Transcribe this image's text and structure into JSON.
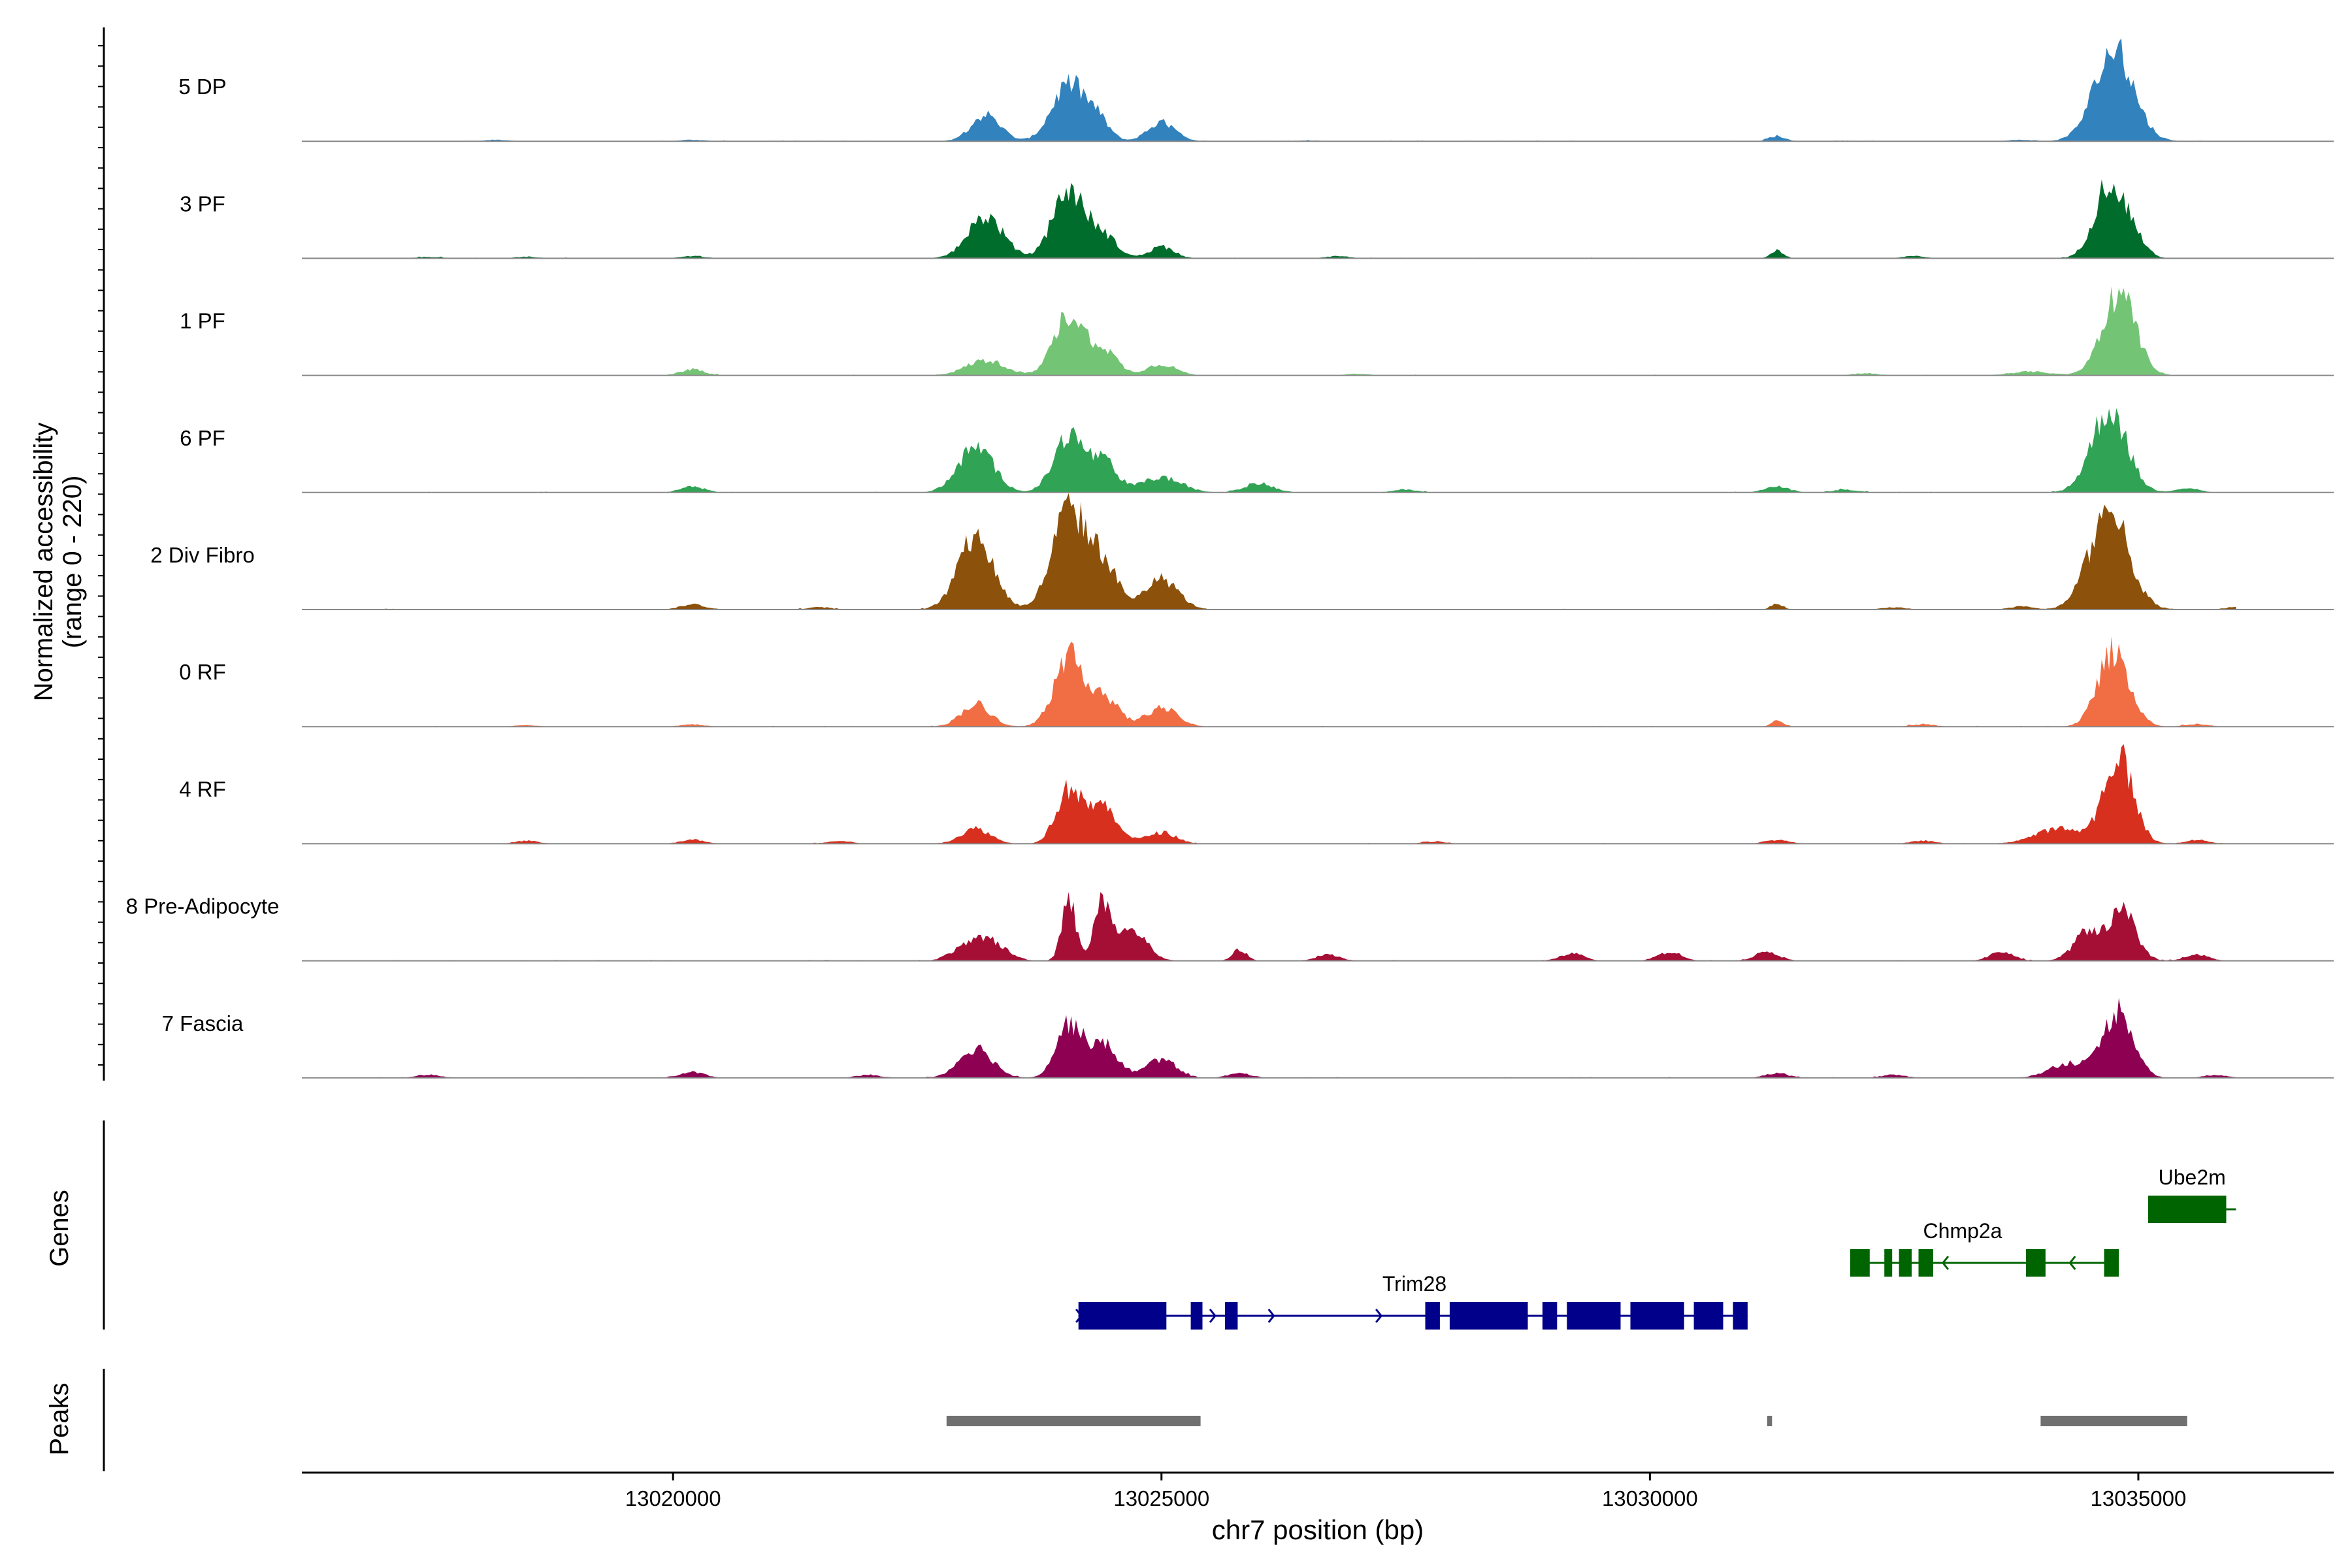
{
  "chart_data": {
    "type": "area",
    "title": "",
    "genome": {
      "chromosome": "chr7",
      "xlim": [
        13016200,
        13037000
      ]
    },
    "xaxis": {
      "label": "chr7 position (bp)",
      "ticks": [
        13020000,
        13025000,
        13030000,
        13035000
      ]
    },
    "yaxis": {
      "label_line1": "Normalized accessibility",
      "label_line2": "(range 0 - 220)",
      "ylim": [
        0,
        220
      ]
    },
    "genes_label": "Genes",
    "peaks_label": "Peaks",
    "tracks": [
      {
        "name": "5 DP",
        "color": "#3182BD",
        "peaks": [
          [
            13023200,
            35,
            150
          ],
          [
            13024050,
            75,
            170
          ],
          [
            13024350,
            25,
            120
          ],
          [
            13025000,
            25,
            140
          ],
          [
            13031300,
            7,
            80
          ],
          [
            13034750,
            120,
            200
          ]
        ],
        "noise": [
          [
            13018200,
            2
          ],
          [
            13020200,
            2
          ],
          [
            13026500,
            1
          ],
          [
            13033800,
            2
          ]
        ]
      },
      {
        "name": "3 PF",
        "color": "#006D2C",
        "peaks": [
          [
            13023200,
            55,
            180
          ],
          [
            13024050,
            90,
            160
          ],
          [
            13024400,
            30,
            140
          ],
          [
            13025000,
            15,
            130
          ],
          [
            13031300,
            10,
            60
          ],
          [
            13034700,
            100,
            150
          ],
          [
            13034950,
            25,
            120
          ]
        ],
        "noise": [
          [
            13017500,
            2
          ],
          [
            13018500,
            2
          ],
          [
            13020200,
            3
          ],
          [
            13026800,
            3
          ],
          [
            13032700,
            3
          ]
        ]
      },
      {
        "name": "1 PF",
        "color": "#74C476",
        "peaks": [
          [
            13023200,
            20,
            200
          ],
          [
            13024050,
            80,
            150
          ],
          [
            13024400,
            35,
            140
          ],
          [
            13025000,
            15,
            150
          ],
          [
            13033900,
            5,
            200
          ],
          [
            13034800,
            110,
            170
          ]
        ],
        "noise": [
          [
            13020200,
            8
          ],
          [
            13027000,
            2
          ],
          [
            13032200,
            3
          ]
        ]
      },
      {
        "name": "6 PF",
        "color": "#31A354",
        "peaks": [
          [
            13023100,
            60,
            180
          ],
          [
            13024050,
            75,
            150
          ],
          [
            13024400,
            40,
            140
          ],
          [
            13025000,
            20,
            200
          ],
          [
            13026000,
            12,
            150
          ],
          [
            13034700,
            110,
            180
          ]
        ],
        "noise": [
          [
            13020200,
            8
          ],
          [
            13027500,
            4
          ],
          [
            13031300,
            8
          ],
          [
            13032000,
            4
          ],
          [
            13035500,
            6
          ]
        ]
      },
      {
        "name": "2 Div Fibro",
        "color": "#8C510A",
        "peaks": [
          [
            13023100,
            95,
            180
          ],
          [
            13024050,
            130,
            170
          ],
          [
            13024400,
            60,
            150
          ],
          [
            13025000,
            40,
            170
          ],
          [
            13031300,
            8,
            60
          ],
          [
            13034700,
            130,
            200
          ]
        ],
        "noise": [
          [
            13020200,
            7
          ],
          [
            13021500,
            3
          ],
          [
            13032500,
            3
          ],
          [
            13033800,
            4
          ],
          [
            13036000,
            3
          ]
        ]
      },
      {
        "name": "0 RF",
        "color": "#F16D43",
        "peaks": [
          [
            13023100,
            30,
            150
          ],
          [
            13024050,
            90,
            150
          ],
          [
            13024400,
            40,
            150
          ],
          [
            13025000,
            25,
            160
          ],
          [
            13031300,
            8,
            60
          ],
          [
            13034750,
            100,
            160
          ]
        ],
        "noise": [
          [
            13018500,
            2
          ],
          [
            13020200,
            3
          ],
          [
            13032800,
            3
          ],
          [
            13035600,
            3
          ]
        ]
      },
      {
        "name": "4 RF",
        "color": "#D7301F",
        "peaks": [
          [
            13023100,
            20,
            150
          ],
          [
            13024050,
            70,
            130
          ],
          [
            13024400,
            50,
            150
          ],
          [
            13025000,
            15,
            150
          ],
          [
            13034200,
            20,
            250
          ],
          [
            13034800,
            115,
            150
          ]
        ],
        "noise": [
          [
            13018500,
            4
          ],
          [
            13020200,
            5
          ],
          [
            13021700,
            4
          ],
          [
            13027800,
            3
          ],
          [
            13031300,
            5
          ],
          [
            13032800,
            4
          ],
          [
            13035600,
            5
          ]
        ]
      },
      {
        "name": "8 Pre-Adipocyte",
        "color": "#A50F35",
        "peaks": [
          [
            13023200,
            30,
            180
          ],
          [
            13024050,
            85,
            70
          ],
          [
            13024400,
            75,
            90
          ],
          [
            13024700,
            40,
            150
          ],
          [
            13025800,
            15,
            70
          ],
          [
            13031200,
            12,
            120
          ],
          [
            13034500,
            40,
            150
          ],
          [
            13034850,
            65,
            130
          ]
        ],
        "noise": [
          [
            13022900,
            8
          ],
          [
            13026700,
            8
          ],
          [
            13029200,
            10
          ],
          [
            13030200,
            12
          ],
          [
            13033600,
            12
          ],
          [
            13035600,
            8
          ]
        ]
      },
      {
        "name": "7 Fascia",
        "color": "#8E0152",
        "peaks": [
          [
            13023100,
            40,
            170
          ],
          [
            13024050,
            70,
            130
          ],
          [
            13024400,
            45,
            150
          ],
          [
            13025000,
            25,
            150
          ],
          [
            13034300,
            20,
            200
          ],
          [
            13034800,
            90,
            150
          ]
        ],
        "noise": [
          [
            13017500,
            4
          ],
          [
            13020200,
            8
          ],
          [
            13022000,
            4
          ],
          [
            13025800,
            6
          ],
          [
            13031300,
            6
          ],
          [
            13032500,
            4
          ],
          [
            13035800,
            4
          ]
        ]
      }
    ],
    "genes": [
      {
        "name": "Trim28",
        "color": "#00008B",
        "strand": "+",
        "start": 13024150,
        "end": 13031000,
        "row": 3,
        "exons": [
          [
            13024150,
            13025050
          ],
          [
            13025300,
            13025420
          ],
          [
            13025650,
            13025780
          ],
          [
            13027700,
            13027850
          ],
          [
            13027950,
            13028750
          ],
          [
            13028900,
            13029050
          ],
          [
            13029150,
            13029700
          ],
          [
            13029800,
            13030350
          ],
          [
            13030450,
            13030750
          ],
          [
            13030850,
            13031000
          ]
        ],
        "arrows": [
          13024180,
          13025550,
          13026150,
          13027250
        ]
      },
      {
        "name": "Chmp2a",
        "color": "#006400",
        "strand": "-",
        "start": 13032050,
        "end": 13034800,
        "row": 2,
        "exons": [
          [
            13032050,
            13032250
          ],
          [
            13032400,
            13032480
          ],
          [
            13032550,
            13032680
          ],
          [
            13032750,
            13032900
          ],
          [
            13033850,
            13034050
          ],
          [
            13034650,
            13034800
          ]
        ],
        "arrows": [
          13033000,
          13034300
        ]
      },
      {
        "name": "Ube2m",
        "color": "#006400",
        "strand": "-",
        "start": 13035100,
        "end": 13036000,
        "row": 1,
        "exons": [
          [
            13035100,
            13035900
          ]
        ],
        "arrows": []
      }
    ],
    "peaks": [
      [
        13022800,
        13025400
      ],
      [
        13031200,
        13031250
      ],
      [
        13034000,
        13035500
      ]
    ]
  }
}
